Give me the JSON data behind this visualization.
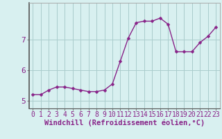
{
  "x": [
    0,
    1,
    2,
    3,
    4,
    5,
    6,
    7,
    8,
    9,
    10,
    11,
    12,
    13,
    14,
    15,
    16,
    17,
    18,
    19,
    20,
    21,
    22,
    23
  ],
  "y": [
    5.2,
    5.2,
    5.35,
    5.45,
    5.45,
    5.4,
    5.35,
    5.3,
    5.3,
    5.35,
    5.55,
    6.3,
    7.05,
    7.55,
    7.6,
    7.6,
    7.7,
    7.5,
    6.6,
    6.6,
    6.6,
    6.9,
    7.1,
    7.4
  ],
  "line_color": "#882288",
  "marker_color": "#882288",
  "bg_color": "#d8f0f0",
  "grid_color": "#aacccc",
  "xlabel": "Windchill (Refroidissement éolien,°C)",
  "ylabel": "",
  "ylim": [
    4.75,
    8.2
  ],
  "xlim": [
    -0.5,
    23.5
  ],
  "yticks": [
    5,
    6,
    7
  ],
  "xticks": [
    0,
    1,
    2,
    3,
    4,
    5,
    6,
    7,
    8,
    9,
    10,
    11,
    12,
    13,
    14,
    15,
    16,
    17,
    18,
    19,
    20,
    21,
    22,
    23
  ],
  "xlabel_fontsize": 7.5,
  "tick_fontsize": 7,
  "line_width": 1.0,
  "marker_size": 2.5
}
